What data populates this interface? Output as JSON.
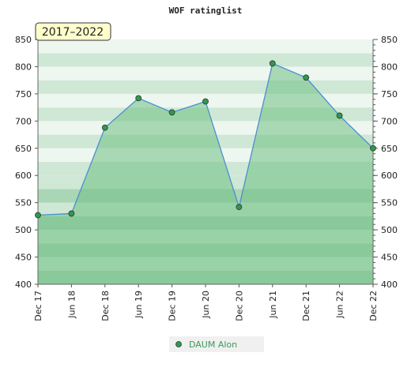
{
  "chart_data": {
    "type": "area",
    "title": "WOF ratinglist",
    "period_label": "2017–2022",
    "categories": [
      "Dec 17",
      "Jun 18",
      "Dec 18",
      "Jun 19",
      "Dec 19",
      "Jun 20",
      "Dec 20",
      "Jun 21",
      "Dec 21",
      "Jun 22",
      "Dec 22"
    ],
    "series": [
      {
        "name": "DAUM Alon",
        "values": [
          527,
          530,
          688,
          742,
          716,
          736,
          542,
          806,
          780,
          710,
          650
        ]
      }
    ],
    "ylim": [
      400,
      850
    ],
    "yticks": [
      400,
      450,
      500,
      550,
      600,
      650,
      700,
      750,
      800,
      850
    ],
    "y_axis_both_sides": true,
    "legend_position": "bottom-center",
    "colors": {
      "line": "#4a8fd0",
      "fill": "#6fbf84",
      "marker": "#2d9a4e",
      "marker_edge": "#333333",
      "band_light": "#eef6f0",
      "band_mid": "#cfe8d6",
      "band_dark": "#a9d6b5",
      "label_bg": "#ffffcc"
    }
  }
}
